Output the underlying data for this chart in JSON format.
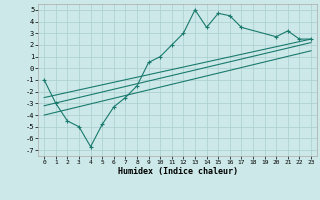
{
  "xlabel": "Humidex (Indice chaleur)",
  "ylabel": "",
  "bg_color": "#cce8e8",
  "line_color": "#1a7a6e",
  "xlim": [
    -0.5,
    23.5
  ],
  "ylim": [
    -7.5,
    5.5
  ],
  "xticks": [
    0,
    1,
    2,
    3,
    4,
    5,
    6,
    7,
    8,
    9,
    10,
    11,
    12,
    13,
    14,
    15,
    16,
    17,
    18,
    19,
    20,
    21,
    22,
    23
  ],
  "yticks": [
    -7,
    -6,
    -5,
    -4,
    -3,
    -2,
    -1,
    0,
    1,
    2,
    3,
    4,
    5
  ],
  "zigzag_x": [
    0,
    1,
    2,
    3,
    4,
    5,
    6,
    7,
    8,
    9,
    10,
    11,
    12,
    13,
    14,
    15,
    16,
    17,
    20,
    21,
    22,
    23
  ],
  "zigzag_y": [
    -1,
    -3,
    -4.5,
    -5,
    -6.7,
    -4.8,
    -3.3,
    -2.5,
    -1.5,
    0.5,
    1.0,
    2.0,
    3.0,
    5.0,
    3.5,
    4.7,
    4.5,
    3.5,
    2.7,
    3.2,
    2.5,
    2.5
  ],
  "line1_x": [
    0,
    23
  ],
  "line1_y": [
    -2.5,
    2.5
  ],
  "line2_x": [
    0,
    23
  ],
  "line2_y": [
    -3.2,
    2.2
  ],
  "line3_x": [
    0,
    23
  ],
  "line3_y": [
    -4.0,
    1.5
  ]
}
